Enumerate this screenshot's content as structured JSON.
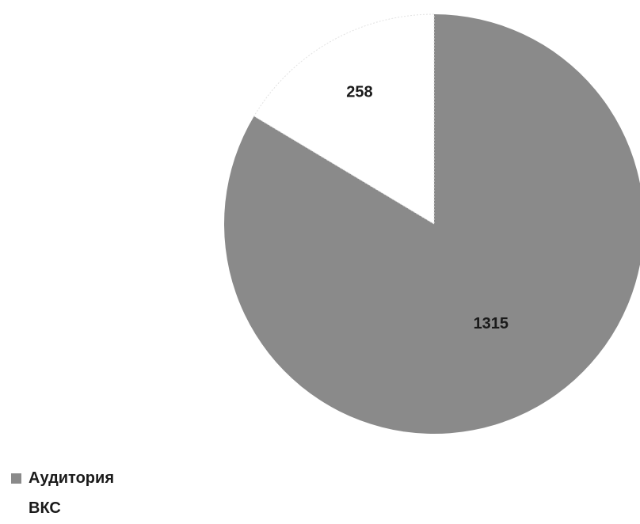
{
  "chart_data": {
    "type": "pie",
    "title": "",
    "slices": [
      {
        "label": "Аудитория",
        "value": 1315,
        "display": "1315",
        "color": "#8a8a8a"
      },
      {
        "label": "ВКС",
        "value": 258,
        "display": "258",
        "color": "#ffffff"
      }
    ],
    "start_angle": "12 o'clock",
    "direction": "clockwise",
    "legend_position": "bottom-left"
  }
}
